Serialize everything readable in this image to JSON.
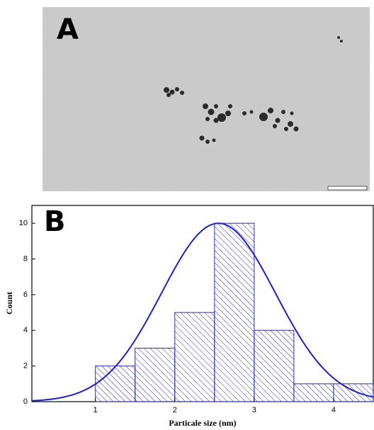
{
  "panel_a": {
    "label": "A"
  },
  "chart_data": {
    "type": "histogram",
    "panel_label": "B",
    "x_label": "Particale size (nm)",
    "y_label": "Count",
    "bins": [
      1,
      1.5,
      2,
      2.5,
      3,
      3.5,
      4,
      4.5
    ],
    "counts": [
      2,
      3,
      5,
      10,
      4,
      1,
      1
    ],
    "color": "#2b2f9e",
    "fit": {
      "amplitude": 10,
      "mean": 2.55,
      "sigma": 0.72,
      "color": "#1f1fc8"
    },
    "xlim": [
      0.2,
      4.5
    ],
    "xticks": [
      1,
      2,
      3,
      4
    ],
    "ylim": [
      0,
      11
    ],
    "yticks": [
      0,
      2,
      4,
      6,
      8,
      10
    ]
  }
}
